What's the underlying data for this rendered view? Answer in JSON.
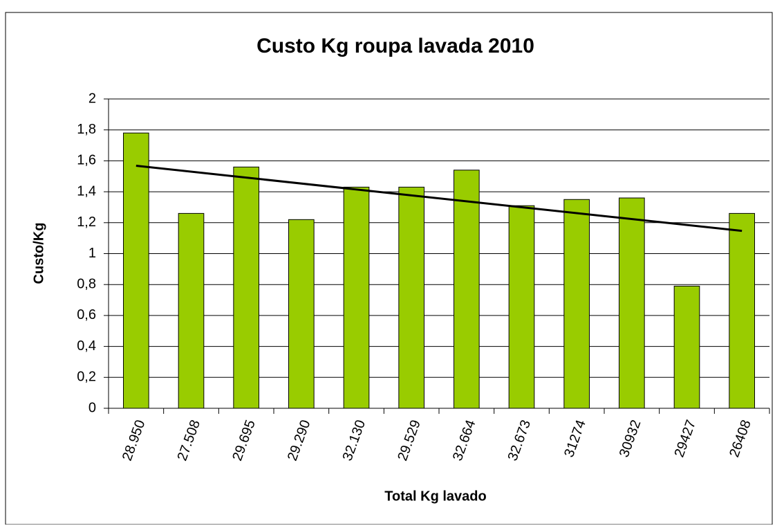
{
  "chart_data": {
    "type": "bar",
    "title": "Custo Kg roupa lavada 2010",
    "x_label": "Total Kg  lavado",
    "y_label": "Custo/Kg",
    "categories": [
      "28.950",
      "27.508",
      "29.695",
      "29.290",
      "32.130",
      "29.529",
      "32.664",
      "32.673",
      "31274",
      "30932",
      "29427",
      "26408"
    ],
    "values": [
      1.78,
      1.26,
      1.56,
      1.22,
      1.43,
      1.43,
      1.54,
      1.31,
      1.35,
      1.36,
      0.79,
      1.26
    ],
    "color": "#99cc00",
    "trendline": "linear",
    "trendline_color": "#000000",
    "ylim": [
      0,
      2
    ],
    "yticks": [
      0,
      {
        "value": 0.2,
        "label": "0,2"
      },
      {
        "value": 0.4,
        "label": "0,4"
      },
      {
        "value": 0.6,
        "label": "0,6"
      },
      {
        "value": 0.8,
        "label": "0,8"
      },
      1,
      {
        "value": 1.2,
        "label": "1,2"
      },
      {
        "value": 1.4,
        "label": "1,4"
      },
      {
        "value": 1.6,
        "label": "1,6"
      },
      {
        "value": 1.8,
        "label": "1,8"
      },
      2
    ],
    "grid": true
  }
}
